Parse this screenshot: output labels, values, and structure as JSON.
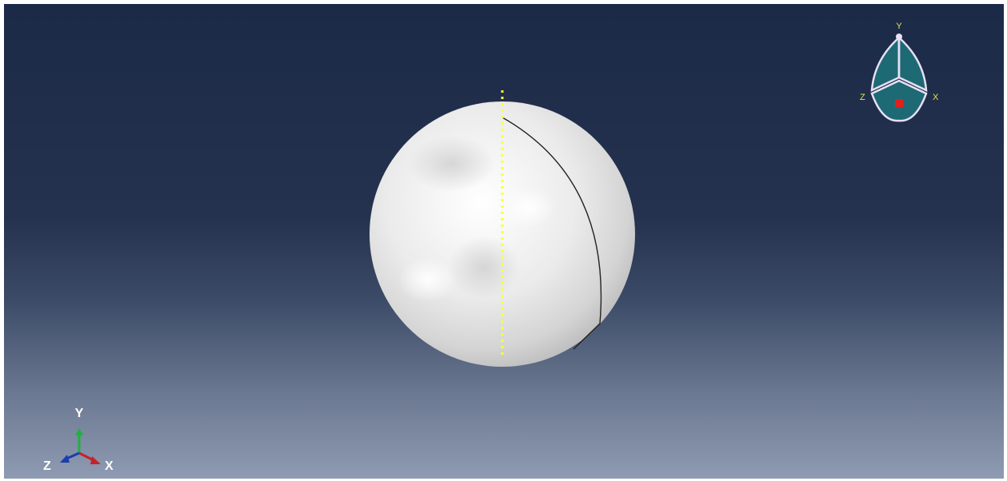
{
  "viewport": {
    "background_top": "#1b2a47",
    "background_bottom": "#8e9bb2"
  },
  "model": {
    "shape": "sphere",
    "fill": "#ececec",
    "datum_axis_color": "#ffff33",
    "partition_edge_color": "#222222"
  },
  "triad": {
    "x_label": "X",
    "y_label": "Y",
    "z_label": "Z",
    "x_color": "#c8202a",
    "y_color": "#20b040",
    "z_color": "#1a3fa8",
    "label_color": "#ffffff"
  },
  "view_cube": {
    "y_label": "Y",
    "x_label": "X",
    "z_label": "Z",
    "face_color": "#1e6a74",
    "edge_color": "#e8e0f5",
    "label_color": "#e8e34a",
    "marker_color": "#e0201c"
  }
}
